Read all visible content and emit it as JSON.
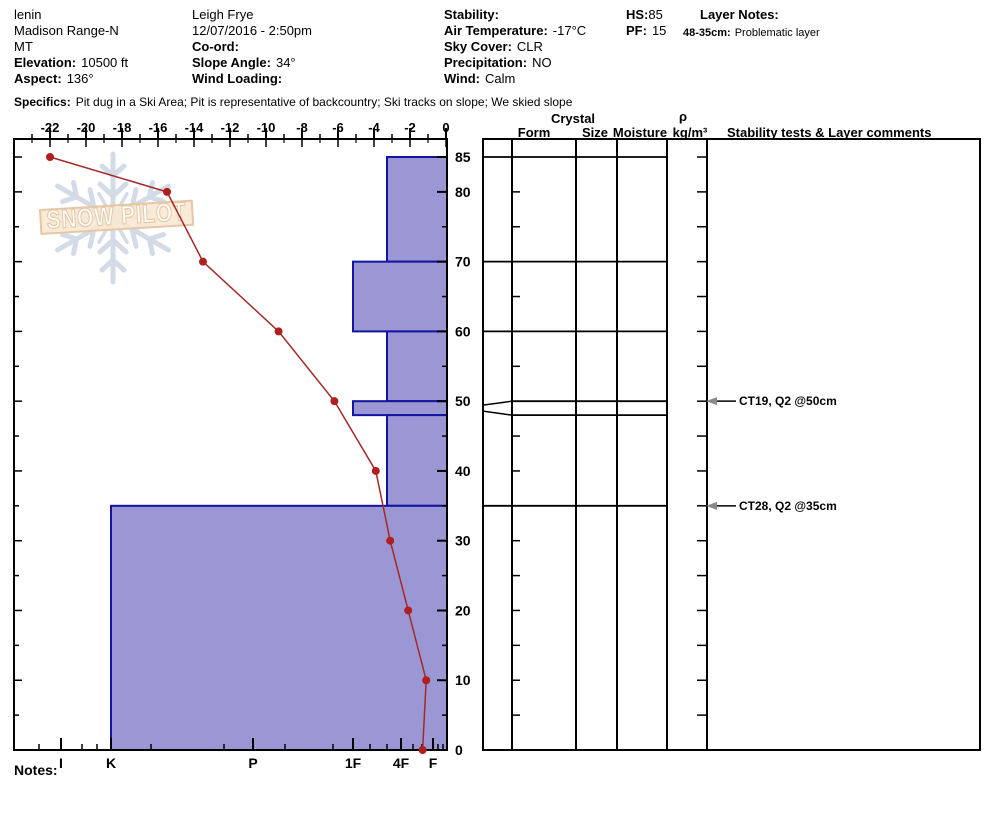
{
  "header": {
    "pit_name": "lenin",
    "range": "Madison Range-N",
    "state": "MT",
    "elevation_label": "Elevation:",
    "elevation": "10500 ft",
    "aspect_label": "Aspect:",
    "aspect": "136°",
    "observer": "Leigh Frye",
    "datetime": "12/07/2016 - 2:50pm",
    "coord_label": "Co-ord:",
    "slope_angle_label": "Slope Angle:",
    "slope_angle": "34°",
    "wind_loading_label": "Wind Loading:",
    "stability_label": "Stability:",
    "air_temp_label": "Air Temperature:",
    "air_temp": "-17°C",
    "sky_label": "Sky Cover:",
    "sky": "CLR",
    "precip_label": "Precipitation:",
    "precip": "NO",
    "wind_label": "Wind:",
    "wind": "Calm",
    "hs_label": "HS:",
    "hs": "85",
    "pf_label": "PF:",
    "pf": "15",
    "layer_notes_label": "Layer Notes:",
    "layer_note_depth": "48-35cm:",
    "layer_note_text": "Problematic layer",
    "specifics_label": "Specifics:",
    "specifics": "Pit dug in a Ski Area;  Pit is representative of backcountry;  Ski tracks on slope;  We skied slope"
  },
  "watermark": {
    "text": "SNOW PILOT"
  },
  "notes_label": "Notes:",
  "panel": {
    "crystal_header": "Crystal",
    "col_form": "Form",
    "col_size": "Size",
    "col_moisture": "Moisture",
    "rho_symbol": "ρ",
    "rho_units": "kg/m³",
    "tests_header": "Stability tests & Layer comments",
    "annotations": [
      {
        "depth_cm": 50,
        "text": "CT19, Q2 @50cm"
      },
      {
        "depth_cm": 35,
        "text": "CT28, Q2 @35cm"
      }
    ]
  },
  "chart_data": {
    "type": "snow-profile (line temperature + bar hardness)",
    "title": "",
    "temp_axis": {
      "ticks": [
        -22,
        -20,
        -18,
        -16,
        -14,
        -12,
        -10,
        -8,
        -6,
        -4,
        -2,
        0
      ],
      "range": [
        -24,
        0
      ],
      "unit": "°C",
      "position": "top"
    },
    "depth_axis": {
      "labels": [
        85,
        80,
        70,
        60,
        50,
        40,
        30,
        20,
        10,
        0
      ],
      "minor_step": 5,
      "range": [
        0,
        87.5
      ],
      "unit": "cm",
      "position": "right"
    },
    "hardness_axis": {
      "labels": [
        "I",
        "K",
        "P",
        "1F",
        "4F",
        "F"
      ],
      "position": "bottom"
    },
    "temperature_series": {
      "depths_cm": [
        85,
        80,
        70,
        60,
        50,
        40,
        30,
        20,
        10,
        0
      ],
      "temps_c": [
        -22,
        -15.5,
        -13.5,
        -9.3,
        -6.2,
        -3.9,
        -3.1,
        -2.1,
        -1.1,
        -1.3
      ]
    },
    "layers": [
      {
        "top_cm": 85,
        "bottom_cm": 70,
        "hardness": "4F+"
      },
      {
        "top_cm": 70,
        "bottom_cm": 60,
        "hardness": "1F"
      },
      {
        "top_cm": 60,
        "bottom_cm": 50,
        "hardness": "4F+"
      },
      {
        "top_cm": 50,
        "bottom_cm": 48,
        "hardness": "1F"
      },
      {
        "top_cm": 48,
        "bottom_cm": 35,
        "hardness": "4F+"
      },
      {
        "top_cm": 35,
        "bottom_cm": 0,
        "hardness": "K"
      }
    ],
    "colors": {
      "bar_fill": "#9b97d4",
      "bar_border": "#1414a0",
      "temp_line": "#a52828",
      "temp_point": "#b01e1e",
      "watermark_flake": "#c7d3e1",
      "watermark_band_fill": "#f6e3c8",
      "watermark_band_border": "#e0b98e",
      "annotation_arrow": "#8a8a8a"
    }
  }
}
